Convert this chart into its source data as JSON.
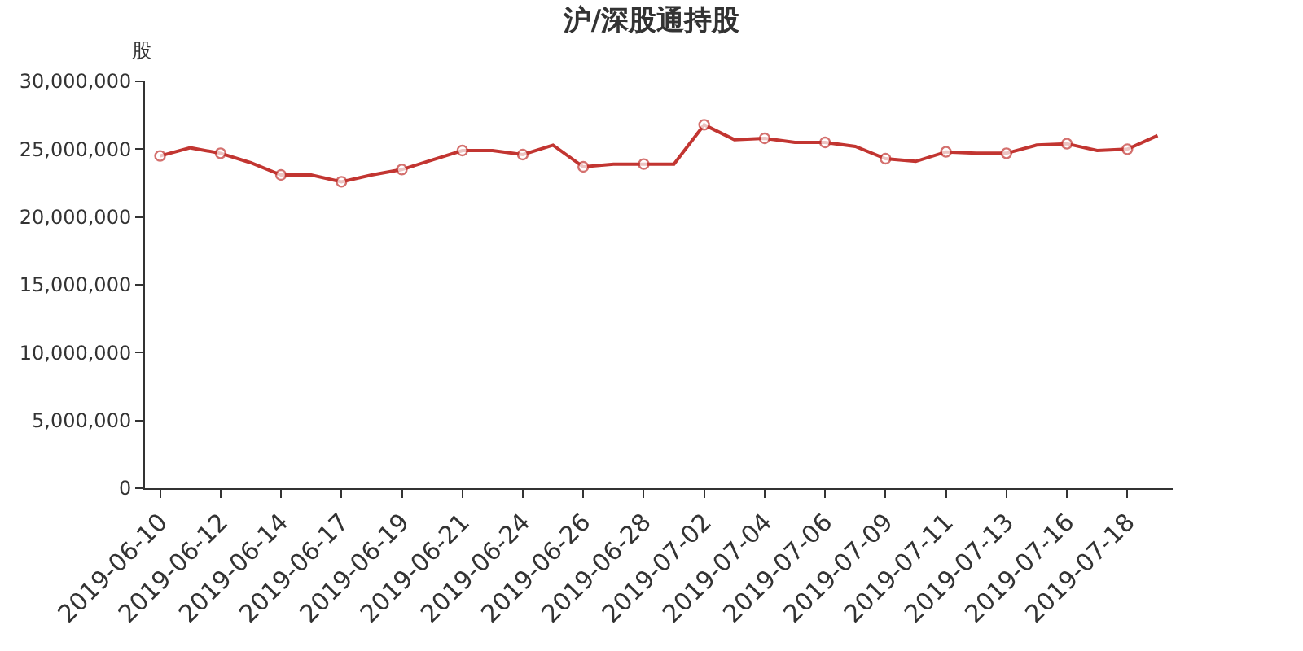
{
  "chart_data": {
    "type": "line",
    "title": "沪/深股通持股",
    "ylabel": "股",
    "categories": [
      "2019-06-10",
      null,
      "2019-06-12",
      null,
      "2019-06-14",
      null,
      "2019-06-17",
      null,
      "2019-06-19",
      null,
      "2019-06-21",
      null,
      "2019-06-24",
      null,
      "2019-06-26",
      null,
      "2019-06-28",
      null,
      "2019-07-02",
      null,
      "2019-07-04",
      null,
      "2019-07-06",
      null,
      "2019-07-09",
      null,
      "2019-07-11",
      null,
      "2019-07-13",
      null,
      "2019-07-16",
      null,
      "2019-07-18",
      null
    ],
    "series": [
      {
        "color": "#c23531",
        "values": [
          24500000,
          25100000,
          24700000,
          24000000,
          23100000,
          23100000,
          22600000,
          23100000,
          23500000,
          24200000,
          24900000,
          24900000,
          24600000,
          25300000,
          23700000,
          23900000,
          23900000,
          23900000,
          26800000,
          25700000,
          25800000,
          25500000,
          25500000,
          25200000,
          24300000,
          24100000,
          24800000,
          24700000,
          24700000,
          25300000,
          25400000,
          24900000,
          25000000,
          26000000
        ]
      }
    ],
    "ylim": [
      0,
      30000000
    ],
    "yticks": [
      0,
      {
        "value": 5000000,
        "label": "5,000,000"
      },
      {
        "value": 10000000,
        "label": "10,000,000"
      },
      {
        "value": 15000000,
        "label": "15,000,000"
      },
      {
        "value": 20000000,
        "label": "20,000,000"
      },
      {
        "value": 25000000,
        "label": "25,000,000"
      },
      {
        "value": 30000000,
        "label": "30,000,000"
      }
    ],
    "grid": false,
    "legend": false,
    "marker": "circle",
    "line_style": "solid"
  }
}
